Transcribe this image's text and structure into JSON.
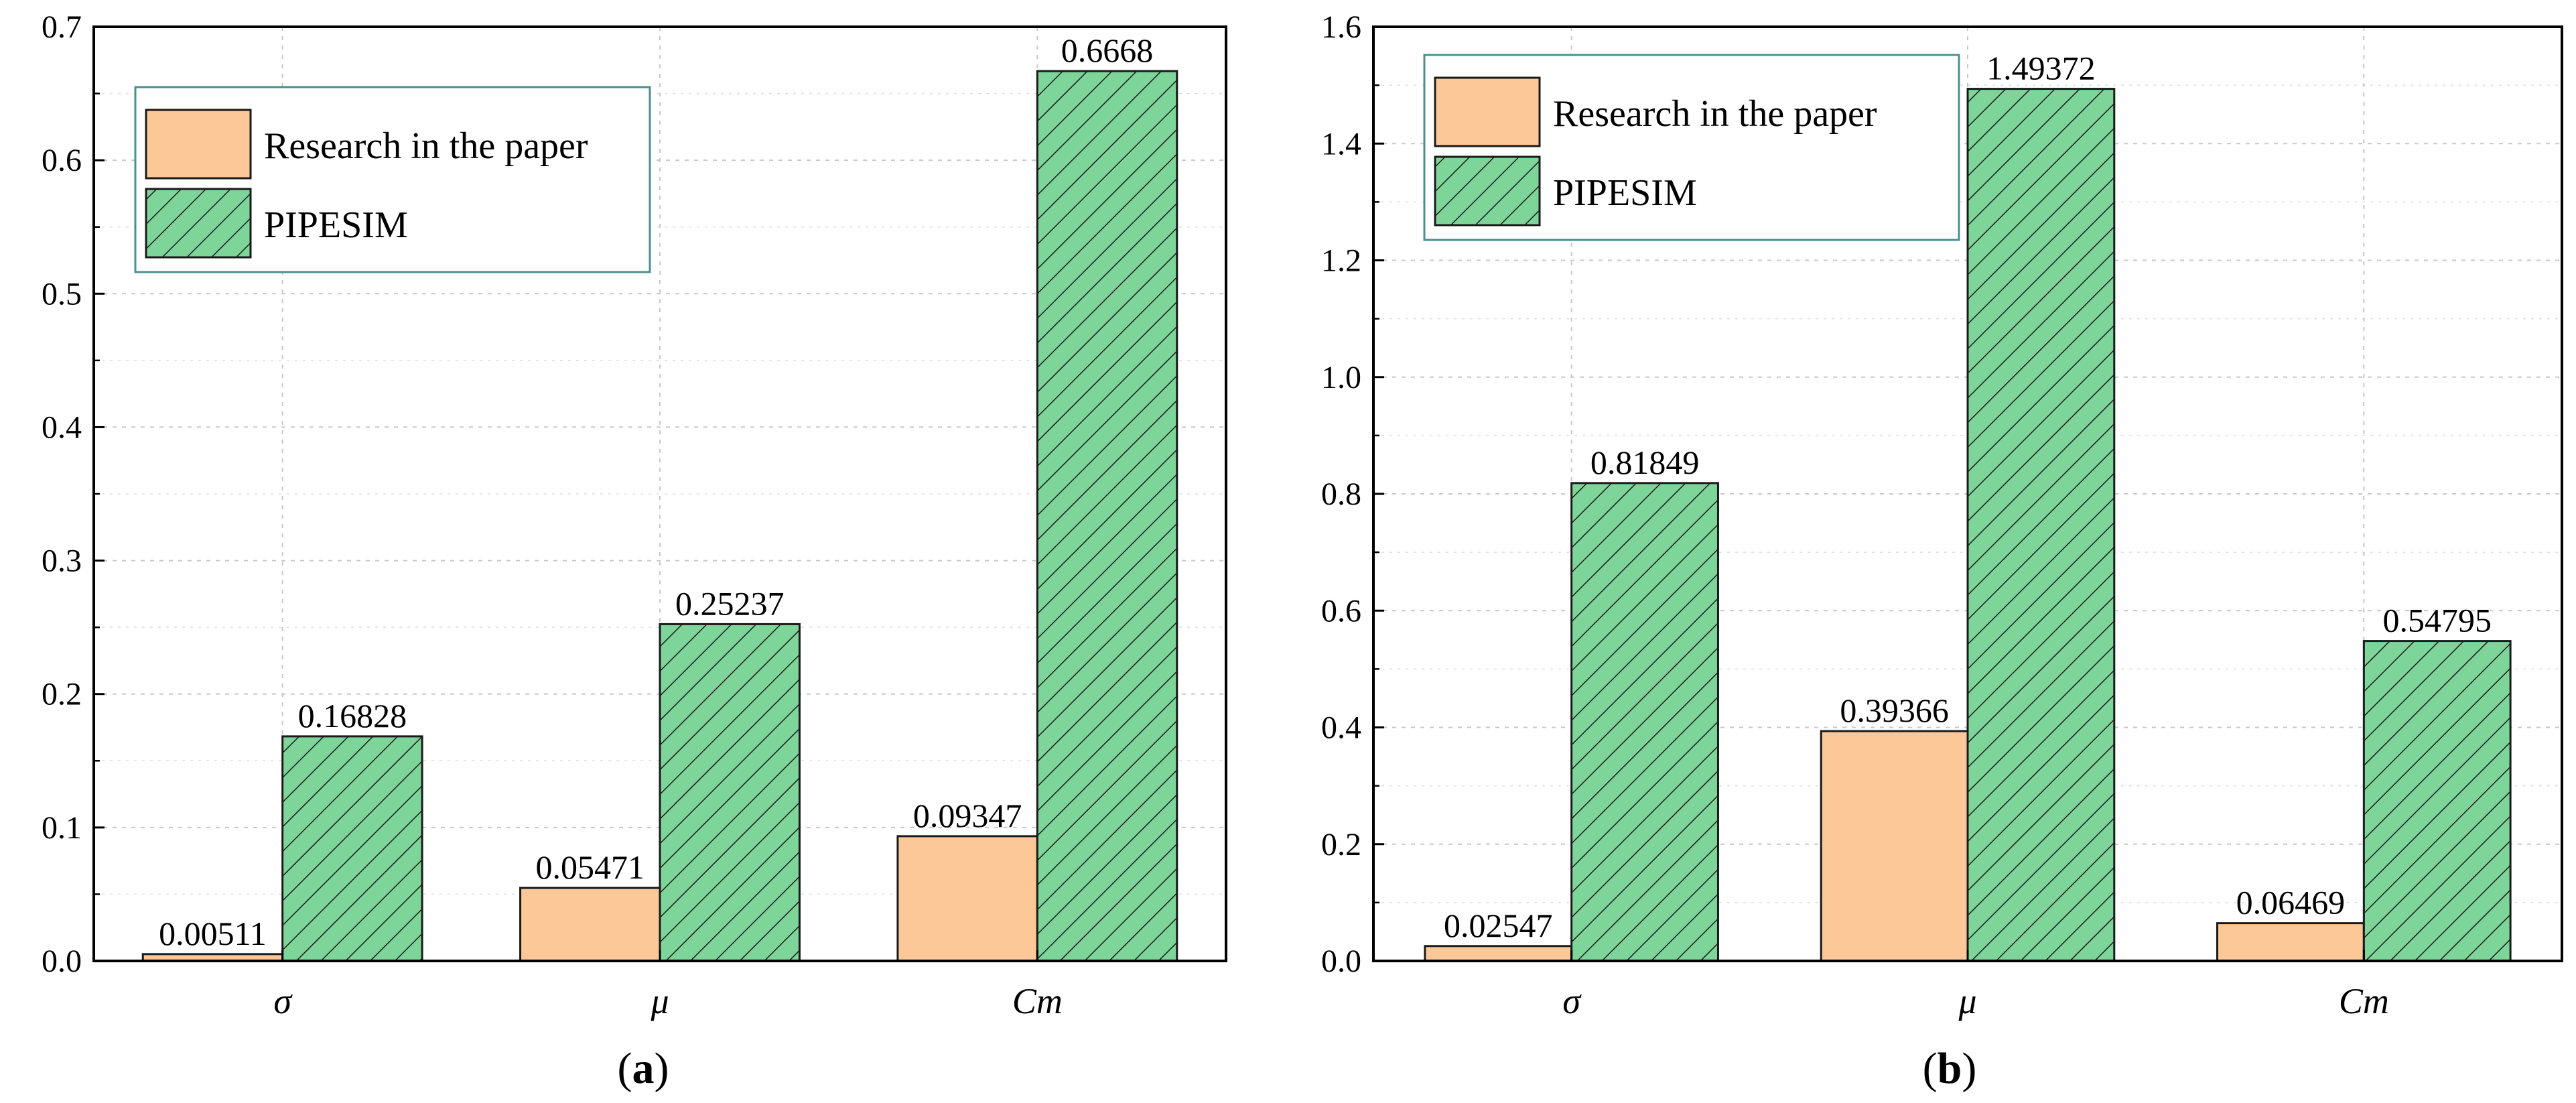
{
  "chart_data": [
    {
      "type": "bar",
      "panel_label": "(a)",
      "panel_letter": "a",
      "categories": [
        "σ",
        "μ",
        "Cm"
      ],
      "series": [
        {
          "name": "Research in the paper",
          "values": [
            0.00511,
            0.05471,
            0.09347
          ],
          "labels": [
            "0.00511",
            "0.05471",
            "0.09347"
          ],
          "color": "#fcc898"
        },
        {
          "name": "PIPESIM",
          "values": [
            0.16828,
            0.25237,
            0.6668
          ],
          "labels": [
            "0.16828",
            "0.25237",
            "0.6668"
          ],
          "color": "#7ed59a"
        }
      ],
      "ylim": [
        0,
        0.7
      ],
      "yticks": [
        0.0,
        0.1,
        0.2,
        0.3,
        0.4,
        0.5,
        0.6,
        0.7
      ],
      "ytick_labels": [
        "0.0",
        "0.1",
        "0.2",
        "0.3",
        "0.4",
        "0.5",
        "0.6",
        "0.7"
      ],
      "legend_position": "top-left",
      "grid": true
    },
    {
      "type": "bar",
      "panel_label": "(b)",
      "panel_letter": "b",
      "categories": [
        "σ",
        "μ",
        "Cm"
      ],
      "series": [
        {
          "name": "Research in the paper",
          "values": [
            0.02547,
            0.39366,
            0.06469
          ],
          "labels": [
            "0.02547",
            "0.39366",
            "0.06469"
          ],
          "color": "#fcc898"
        },
        {
          "name": "PIPESIM",
          "values": [
            0.81849,
            1.49372,
            0.54795
          ],
          "labels": [
            "0.81849",
            "1.49372",
            "0.54795"
          ],
          "color": "#7ed59a"
        }
      ],
      "ylim": [
        0,
        1.6
      ],
      "yticks": [
        0.0,
        0.2,
        0.4,
        0.6,
        0.8,
        1.0,
        1.2,
        1.4,
        1.6
      ],
      "ytick_labels": [
        "0.0",
        "0.2",
        "0.4",
        "0.6",
        "0.8",
        "1.0",
        "1.2",
        "1.4",
        "1.6"
      ],
      "legend_position": "top-left",
      "grid": true
    }
  ]
}
